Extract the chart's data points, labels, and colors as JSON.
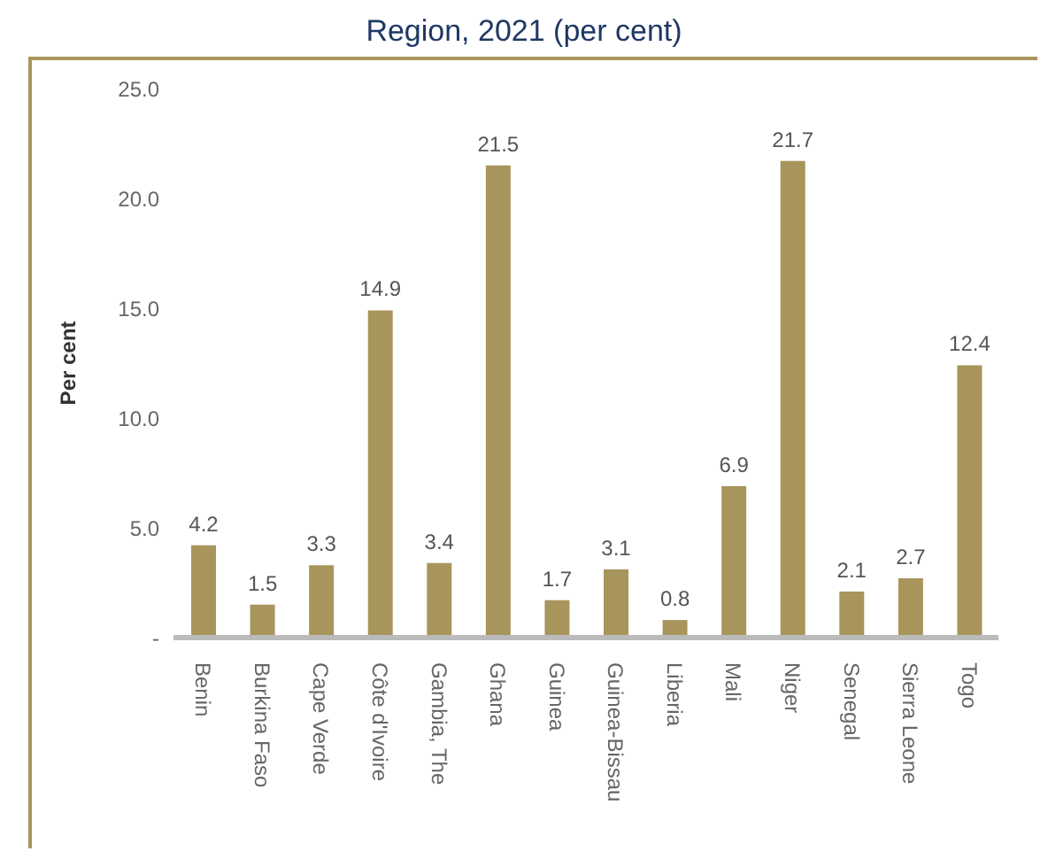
{
  "chart_data": {
    "type": "bar",
    "title": "Region, 2021 (per cent)",
    "ylabel": "Per cent",
    "categories": [
      "Benin",
      "Burkina Faso",
      "Cape Verde",
      "Côte d'Ivoire",
      "Gambia, The",
      "Ghana",
      "Guinea",
      "Guinea-Bissau",
      "Liberia",
      "Mali",
      "Niger",
      "Senegal",
      "Sierra Leone",
      "Togo"
    ],
    "values": [
      4.2,
      1.5,
      3.3,
      14.9,
      3.4,
      21.5,
      1.7,
      3.1,
      0.8,
      6.9,
      21.7,
      2.1,
      2.7,
      12.4
    ],
    "color": "#a8955c",
    "ylim": [
      0,
      25
    ],
    "yticks": [
      {
        "value": 0,
        "label": "-"
      },
      {
        "value": 5,
        "label": "5.0"
      },
      {
        "value": 10,
        "label": "10.0"
      },
      {
        "value": 15,
        "label": "15.0"
      },
      {
        "value": 20,
        "label": "20.0"
      },
      {
        "value": 25,
        "label": "25.0"
      }
    ],
    "data_labels": true
  }
}
